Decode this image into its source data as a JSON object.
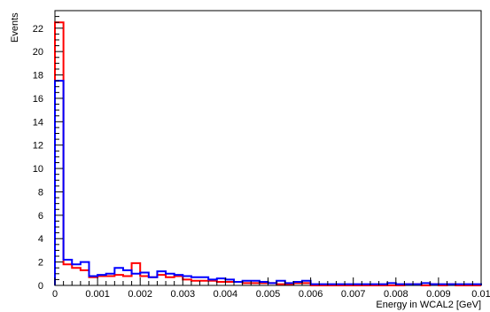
{
  "chart_data": {
    "type": "line",
    "title": "",
    "xlabel": "Energy in WCAL2 [GeV]",
    "ylabel": "Events",
    "xlim": [
      0,
      0.01
    ],
    "ylim": [
      0,
      23.5
    ],
    "grid": false,
    "legend": "none",
    "x_ticks": [
      0,
      0.001,
      0.002,
      0.003,
      0.004,
      0.005,
      0.006,
      0.007,
      0.008,
      0.009,
      0.01
    ],
    "x_tick_labels": [
      "0",
      "0.001",
      "0.002",
      "0.003",
      "0.004",
      "0.005",
      "0.006",
      "0.007",
      "0.008",
      "0.009",
      "0.01"
    ],
    "y_ticks": [
      0,
      2,
      4,
      6,
      8,
      10,
      12,
      14,
      16,
      18,
      20,
      22
    ],
    "y_tick_labels": [
      "0",
      "2",
      "4",
      "6",
      "8",
      "10",
      "12",
      "14",
      "16",
      "18",
      "20",
      "22"
    ],
    "bin_width": 0.0002,
    "bin_edges_start": 0,
    "series": [
      {
        "color": "#ff0000",
        "values": [
          22.5,
          1.8,
          1.5,
          1.3,
          0.7,
          0.8,
          0.8,
          0.9,
          0.8,
          1.9,
          0.8,
          0.7,
          0.9,
          0.7,
          0.8,
          0.5,
          0.4,
          0.4,
          0.4,
          0.3,
          0.3,
          0.3,
          0.2,
          0.2,
          0.2,
          0.2,
          0.1,
          0.1,
          0.2,
          0.2,
          0.0,
          0.0,
          0.0,
          0.0,
          0.0,
          0.0,
          0.0,
          0.0,
          0.0,
          0.0,
          0.0,
          0.1,
          0.1,
          0.0,
          0.1,
          0.0,
          0.1,
          0.0,
          0.0,
          0.0
        ]
      },
      {
        "color": "#0000ff",
        "values": [
          17.5,
          2.2,
          1.8,
          2.0,
          0.8,
          0.9,
          1.0,
          1.5,
          1.3,
          1.0,
          1.1,
          0.7,
          1.2,
          1.0,
          0.9,
          0.8,
          0.7,
          0.7,
          0.5,
          0.6,
          0.5,
          0.3,
          0.4,
          0.4,
          0.3,
          0.2,
          0.4,
          0.2,
          0.3,
          0.4,
          0.1,
          0.1,
          0.1,
          0.1,
          0.1,
          0.1,
          0.1,
          0.1,
          0.1,
          0.2,
          0.1,
          0.1,
          0.1,
          0.2,
          0.1,
          0.1,
          0.1,
          0.1,
          0.1,
          0.1
        ]
      }
    ]
  }
}
